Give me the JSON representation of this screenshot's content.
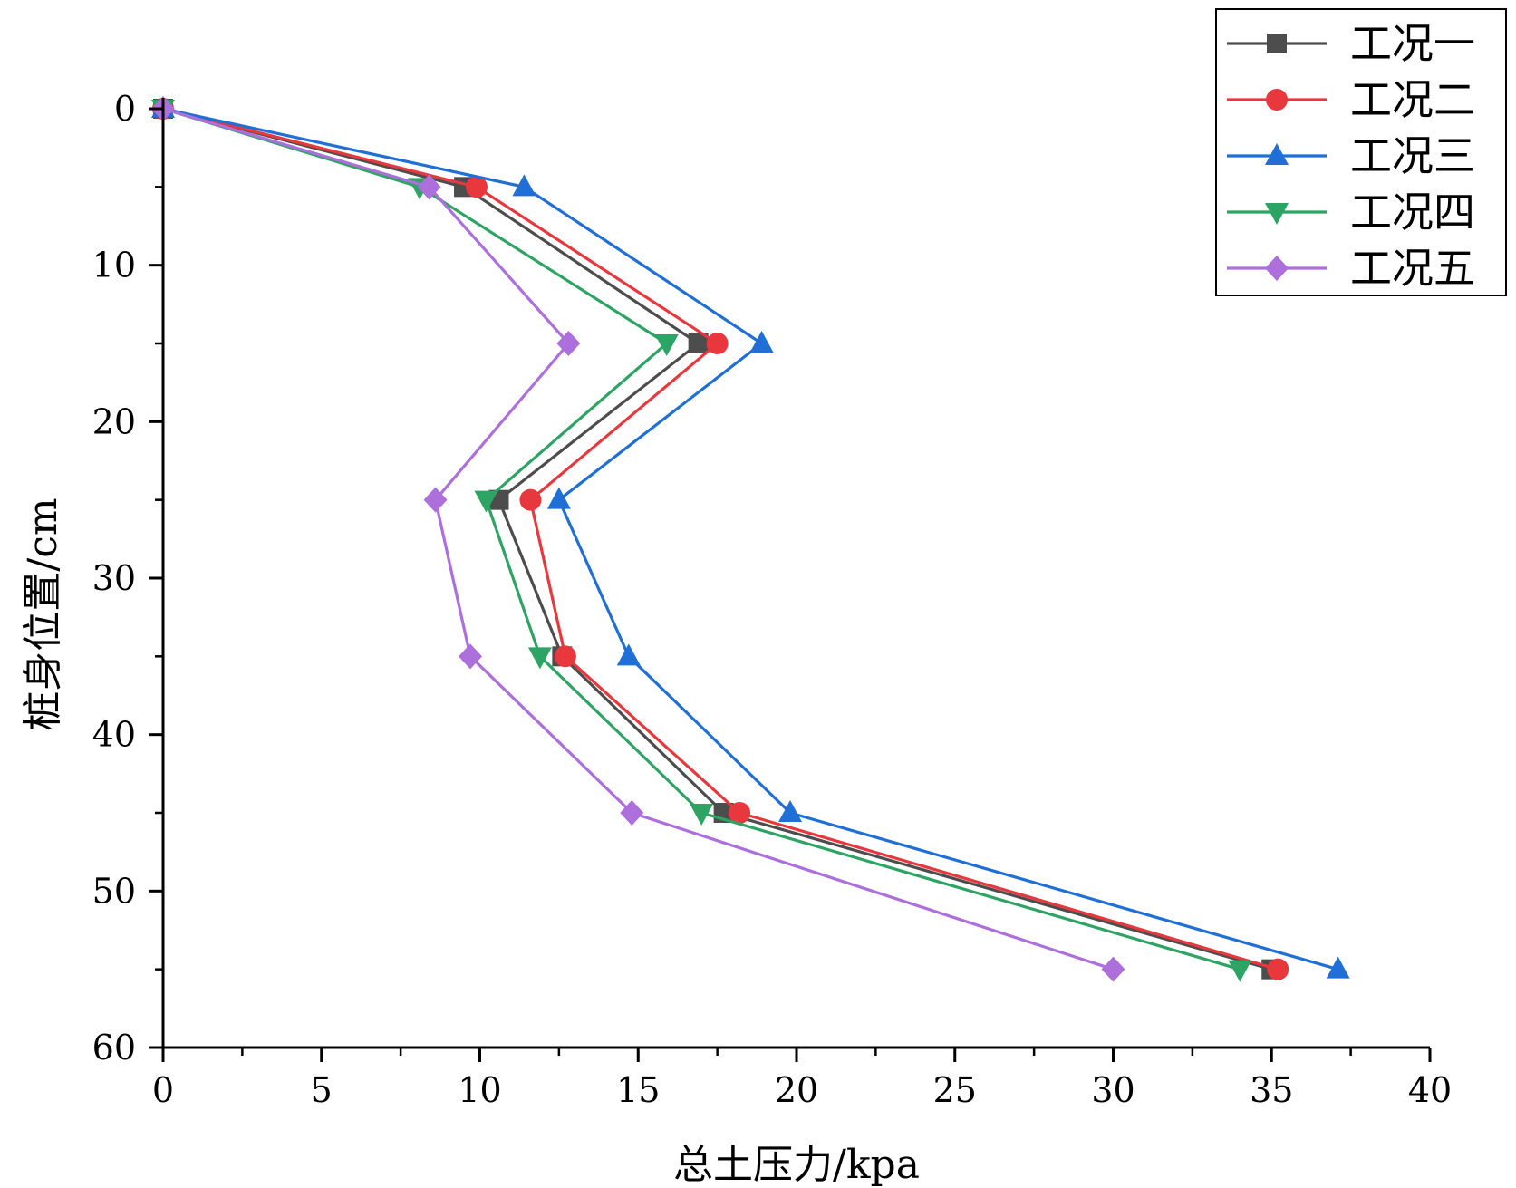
{
  "chart_data": {
    "type": "line",
    "orientation": "y-reversed",
    "xlabel": "总土压力/kpa",
    "ylabel": "桩身位置/cm",
    "xlim": [
      0,
      40
    ],
    "ylim": [
      0,
      60
    ],
    "xticks": [
      0,
      5,
      10,
      15,
      20,
      25,
      30,
      35,
      40
    ],
    "yticks": [
      0,
      10,
      20,
      30,
      40,
      50,
      60
    ],
    "legend_position": "top-right",
    "y": [
      0,
      5,
      15,
      25,
      35,
      45,
      55
    ],
    "series": [
      {
        "name": "工况一",
        "color": "#4d4d4d",
        "marker": "square",
        "x": [
          0,
          9.5,
          16.9,
          10.6,
          12.6,
          17.7,
          35.0
        ]
      },
      {
        "name": "工况二",
        "color": "#e8383d",
        "marker": "circle",
        "x": [
          0,
          9.9,
          17.5,
          11.6,
          12.7,
          18.2,
          35.2
        ]
      },
      {
        "name": "工况三",
        "color": "#1f6fd6",
        "marker": "triangle-up",
        "x": [
          0,
          11.4,
          18.9,
          12.5,
          14.7,
          19.8,
          37.1
        ]
      },
      {
        "name": "工况四",
        "color": "#2ea464",
        "marker": "triangle-down",
        "x": [
          0,
          8.1,
          15.9,
          10.2,
          11.9,
          17.0,
          34.0
        ]
      },
      {
        "name": "工况五",
        "color": "#ad6fdb",
        "marker": "diamond",
        "x": [
          0,
          8.4,
          12.8,
          8.6,
          9.7,
          14.8,
          30.0
        ]
      }
    ]
  }
}
